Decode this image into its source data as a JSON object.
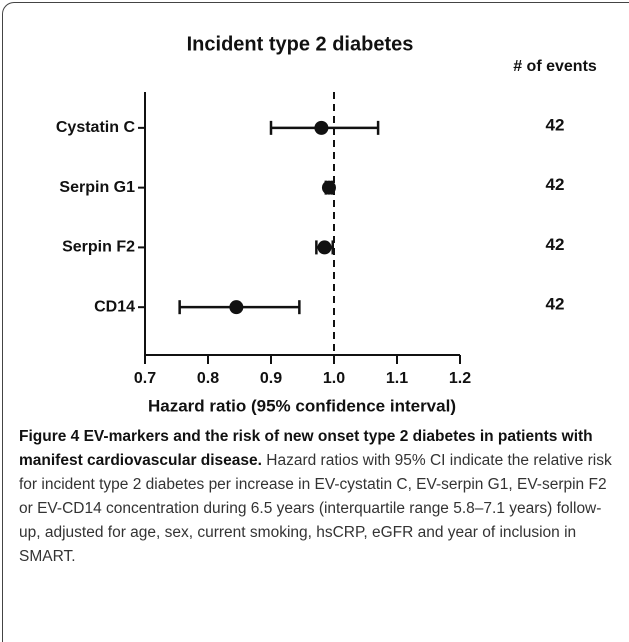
{
  "chart_data": {
    "type": "forest",
    "title": "Incident type 2 diabetes",
    "events_header": "# of events",
    "xlabel": "Hazard ratio (95% confidence interval)",
    "categories": [
      "Cystatin C",
      "Serpin G1",
      "Serpin F2",
      "CD14"
    ],
    "values": [
      0.98,
      0.992,
      0.985,
      0.845
    ],
    "lower": [
      0.9,
      0.987,
      0.972,
      0.755
    ],
    "upper": [
      1.07,
      0.997,
      0.998,
      0.945
    ],
    "events": [
      42,
      42,
      42,
      42
    ],
    "reference": 1.0,
    "xlim": [
      0.7,
      1.2
    ],
    "xticks": [
      0.7,
      0.8,
      0.9,
      {
        "value": 1.0,
        "label": "1.0"
      },
      1.1,
      1.2
    ],
    "color": "#111111"
  },
  "caption": {
    "title": "Figure 4 EV-markers and the risk of new onset type 2 diabetes in patients with manifest cardiovascular disease.",
    "text": "Hazard ratios with 95% CI indicate the relative risk for incident type 2 diabetes per increase in EV-cystatin C, EV-serpin G1, EV-serpin F2 or EV-CD14 concentration during 6.5 years (interquartile range 5.8–7.1 years) follow-up, adjusted for age, sex, current smoking, hsCRP, eGFR and year of inclusion in SMART."
  }
}
